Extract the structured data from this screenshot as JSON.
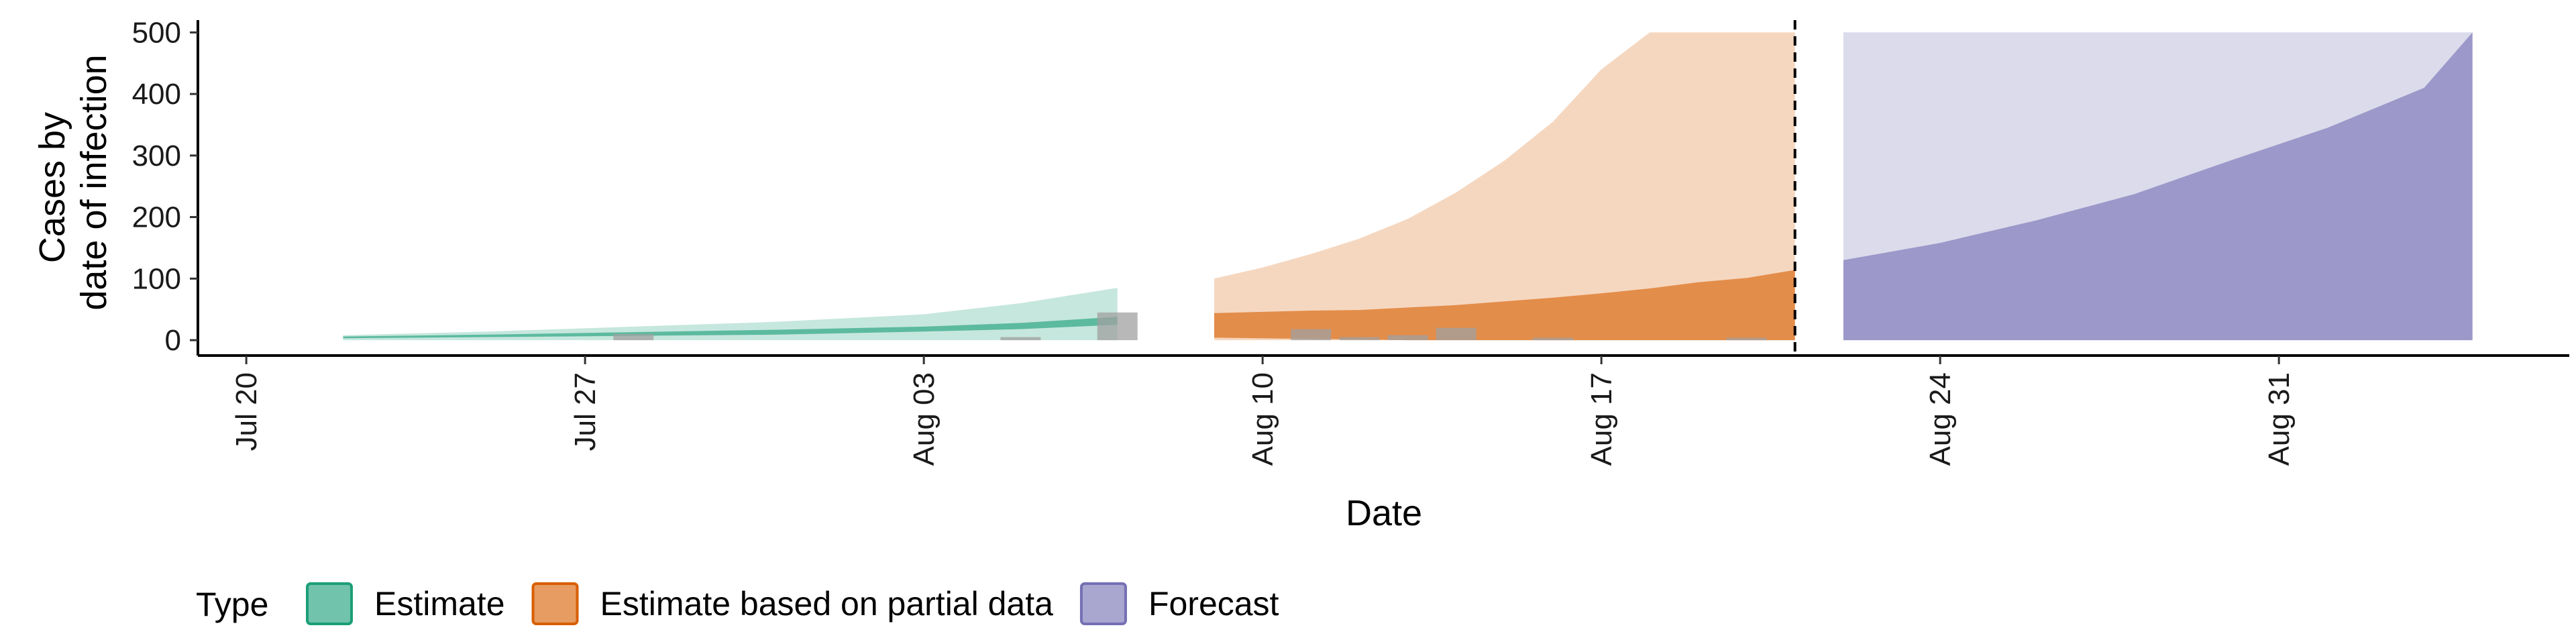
{
  "chart_data": {
    "type": "area",
    "xlabel": "Date",
    "ylabel_lines": [
      "Cases by",
      "date of infection"
    ],
    "x_ticks": [
      "Jul 20",
      "Jul 27",
      "Aug 03",
      "Aug 10",
      "Aug 17",
      "Aug 24",
      "Aug 31"
    ],
    "x_range": [
      "2020-07-19",
      "2020-09-06"
    ],
    "y_ticks": [
      0,
      100,
      200,
      300,
      400,
      500
    ],
    "ylim": [
      -25,
      520
    ],
    "forecast_date": "2020-08-21",
    "legend": {
      "title": "Type",
      "position": "bottom",
      "entries": [
        {
          "label": "Estimate",
          "fill": "#1b9e77",
          "border": "#1b9e77"
        },
        {
          "label": "Estimate based on partial data",
          "fill": "#d95f02",
          "border": "#d95f02"
        },
        {
          "label": "Forecast",
          "fill": "#7570b3",
          "border": "#7570b3"
        }
      ]
    },
    "series": [
      {
        "type": "Estimate",
        "color": "#1b9e77",
        "dates": [
          "2020-07-22",
          "2020-07-25",
          "2020-07-28",
          "2020-07-31",
          "2020-08-03",
          "2020-08-05",
          "2020-08-07"
        ],
        "outer_upper": [
          8,
          14,
          22,
          30,
          42,
          60,
          85
        ],
        "inner_lower": [
          3,
          5,
          7,
          9,
          14,
          18,
          25
        ],
        "inner_upper": [
          6,
          9,
          13,
          17,
          22,
          28,
          38
        ]
      },
      {
        "type": "Estimate based on partial data",
        "color": "#d95f02",
        "dates": [
          "2020-08-09",
          "2020-08-10",
          "2020-08-11",
          "2020-08-12",
          "2020-08-13",
          "2020-08-14",
          "2020-08-15",
          "2020-08-16",
          "2020-08-17",
          "2020-08-18",
          "2020-08-19",
          "2020-08-20",
          "2020-08-21"
        ],
        "outer_upper": [
          100,
          118,
          140,
          165,
          197,
          240,
          292,
          355,
          440,
          500,
          500,
          500,
          500
        ],
        "inner_lower": [
          4,
          3,
          2,
          1,
          0,
          0,
          0,
          0,
          0,
          0,
          0,
          0,
          0
        ],
        "inner_upper": [
          44,
          46,
          48,
          49,
          53,
          57,
          63,
          69,
          76,
          84,
          94,
          101,
          114
        ]
      },
      {
        "type": "Forecast",
        "color": "#7570b3",
        "dates": [
          "2020-08-22",
          "2020-08-24",
          "2020-08-26",
          "2020-08-28",
          "2020-08-30",
          "2020-09-01",
          "2020-09-03",
          "2020-09-04"
        ],
        "outer_upper": [
          500,
          500,
          500,
          500,
          500,
          500,
          500,
          500
        ],
        "inner_lower": [
          0,
          0,
          0,
          0,
          0,
          0,
          0,
          0
        ],
        "inner_upper": [
          130,
          158,
          195,
          237,
          292,
          345,
          410,
          500
        ]
      }
    ],
    "reported_cases": [
      {
        "date": "2020-07-28",
        "value": 10
      },
      {
        "date": "2020-08-05",
        "value": 5
      },
      {
        "date": "2020-08-07",
        "value": 45
      },
      {
        "date": "2020-08-11",
        "value": 18
      },
      {
        "date": "2020-08-12",
        "value": 5
      },
      {
        "date": "2020-08-13",
        "value": 8
      },
      {
        "date": "2020-08-14",
        "value": 20
      },
      {
        "date": "2020-08-16",
        "value": 4
      },
      {
        "date": "2020-08-20",
        "value": 4
      }
    ]
  }
}
